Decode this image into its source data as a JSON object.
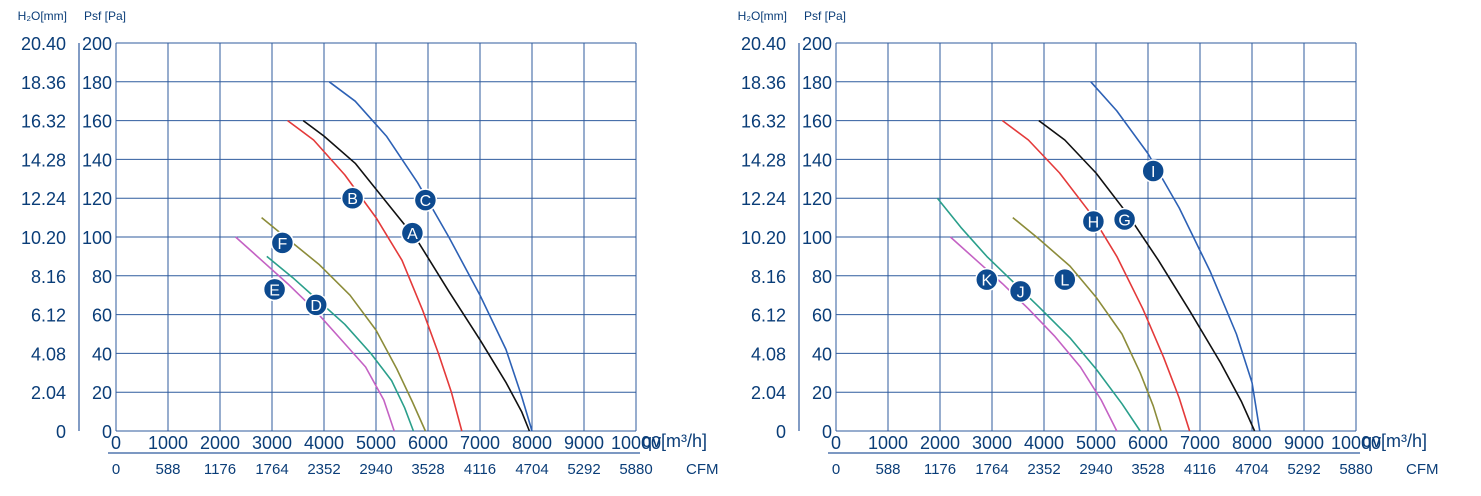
{
  "chart_data": [
    {
      "type": "line",
      "title": "",
      "y_units": {
        "mm": "H₂O[mm]",
        "pa": "Psf [Pa]"
      },
      "x_unit_top": "qv[m³/h]",
      "x_unit_bottom": "CFM",
      "grid": true,
      "xlim": [
        0,
        10000
      ],
      "ylim": [
        0,
        200
      ],
      "y_ticks_pa": [
        "0",
        "20",
        "40",
        "60",
        "80",
        "100",
        "120",
        "140",
        "160",
        "180",
        "200"
      ],
      "y_ticks_mm": [
        "0",
        "2.04",
        "4.08",
        "6.12",
        "8.16",
        "10.20",
        "12.24",
        "14.28",
        "16.32",
        "18.36",
        "20.40"
      ],
      "x_ticks_m3h": [
        "0",
        "1000",
        "2000",
        "3000",
        "4000",
        "5000",
        "6000",
        "7000",
        "8000",
        "9000",
        "10000"
      ],
      "x_ticks_cfm": [
        "0",
        "588",
        "1176",
        "1764",
        "2352",
        "2940",
        "3528",
        "4116",
        "4704",
        "5292",
        "5880"
      ],
      "series": [
        {
          "name": "A",
          "color": "#111111",
          "points": [
            [
              3600,
              160
            ],
            [
              4000,
              152
            ],
            [
              4600,
              138
            ],
            [
              5200,
              118
            ],
            [
              5800,
              98
            ],
            [
              6400,
              72
            ],
            [
              7000,
              47
            ],
            [
              7500,
              25
            ],
            [
              7800,
              10
            ],
            [
              7950,
              0
            ]
          ]
        },
        {
          "name": "B",
          "color": "#e43a3a",
          "points": [
            [
              3300,
              160
            ],
            [
              3800,
              150
            ],
            [
              4400,
              132
            ],
            [
              5000,
              110
            ],
            [
              5500,
              88
            ],
            [
              5900,
              62
            ],
            [
              6200,
              40
            ],
            [
              6450,
              20
            ],
            [
              6650,
              0
            ]
          ]
        },
        {
          "name": "C",
          "color": "#2d61b5",
          "points": [
            [
              4100,
              180
            ],
            [
              4600,
              170
            ],
            [
              5200,
              152
            ],
            [
              5800,
              128
            ],
            [
              6400,
              100
            ],
            [
              7000,
              70
            ],
            [
              7500,
              42
            ],
            [
              7800,
              18
            ],
            [
              8000,
              0
            ]
          ]
        },
        {
          "name": "D",
          "color": "#2a9f8b",
          "points": [
            [
              2900,
              90
            ],
            [
              3400,
              79
            ],
            [
              3900,
              67
            ],
            [
              4400,
              55
            ],
            [
              4900,
              40
            ],
            [
              5300,
              26
            ],
            [
              5550,
              12
            ],
            [
              5720,
              0
            ]
          ]
        },
        {
          "name": "E",
          "color": "#c462c4",
          "points": [
            [
              2300,
              100
            ],
            [
              2800,
              88
            ],
            [
              3300,
              76
            ],
            [
              3800,
              63
            ],
            [
              4300,
              48
            ],
            [
              4800,
              33
            ],
            [
              5150,
              16
            ],
            [
              5350,
              0
            ]
          ]
        },
        {
          "name": "F",
          "color": "#8c8c3a",
          "points": [
            [
              2800,
              110
            ],
            [
              3300,
              99
            ],
            [
              3900,
              86
            ],
            [
              4500,
              70
            ],
            [
              5000,
              52
            ],
            [
              5400,
              32
            ],
            [
              5700,
              15
            ],
            [
              5950,
              0
            ]
          ]
        }
      ],
      "markers": [
        {
          "label": "A",
          "x": 5700,
          "y": 102
        },
        {
          "label": "B",
          "x": 4550,
          "y": 120
        },
        {
          "label": "C",
          "x": 5950,
          "y": 119
        },
        {
          "label": "D",
          "x": 3850,
          "y": 65
        },
        {
          "label": "E",
          "x": 3050,
          "y": 73
        },
        {
          "label": "F",
          "x": 3200,
          "y": 97
        }
      ]
    },
    {
      "type": "line",
      "title": "",
      "y_units": {
        "mm": "H₂O[mm]",
        "pa": "Psf [Pa]"
      },
      "x_unit_top": "qv[m³/h]",
      "x_unit_bottom": "CFM",
      "grid": true,
      "xlim": [
        0,
        10000
      ],
      "ylim": [
        0,
        200
      ],
      "y_ticks_pa": [
        "0",
        "20",
        "40",
        "60",
        "80",
        "100",
        "120",
        "140",
        "160",
        "180",
        "200"
      ],
      "y_ticks_mm": [
        "0",
        "2.04",
        "4.08",
        "6.12",
        "8.16",
        "10.20",
        "12.24",
        "14.28",
        "16.32",
        "18.36",
        "20.40"
      ],
      "x_ticks_m3h": [
        "0",
        "1000",
        "2000",
        "3000",
        "4000",
        "5000",
        "6000",
        "7000",
        "8000",
        "9000",
        "10000"
      ],
      "x_ticks_cfm": [
        "0",
        "588",
        "1176",
        "1764",
        "2352",
        "2940",
        "3528",
        "4116",
        "4704",
        "5292",
        "5880"
      ],
      "series": [
        {
          "name": "G",
          "color": "#111111",
          "points": [
            [
              3900,
              160
            ],
            [
              4400,
              150
            ],
            [
              5000,
              133
            ],
            [
              5600,
              112
            ],
            [
              6200,
              88
            ],
            [
              6800,
              62
            ],
            [
              7400,
              35
            ],
            [
              7800,
              15
            ],
            [
              8050,
              0
            ]
          ]
        },
        {
          "name": "H",
          "color": "#e43a3a",
          "points": [
            [
              3200,
              160
            ],
            [
              3700,
              150
            ],
            [
              4300,
              133
            ],
            [
              4900,
              112
            ],
            [
              5400,
              90
            ],
            [
              5900,
              63
            ],
            [
              6300,
              38
            ],
            [
              6600,
              17
            ],
            [
              6800,
              0
            ]
          ]
        },
        {
          "name": "I",
          "color": "#2d61b5",
          "points": [
            [
              4900,
              180
            ],
            [
              5400,
              165
            ],
            [
              6000,
              143
            ],
            [
              6600,
              115
            ],
            [
              7200,
              82
            ],
            [
              7700,
              50
            ],
            [
              8000,
              25
            ],
            [
              8150,
              0
            ]
          ]
        },
        {
          "name": "J",
          "color": "#c462c4",
          "points": [
            [
              2200,
              100
            ],
            [
              2700,
              88
            ],
            [
              3200,
              76
            ],
            [
              3700,
              63
            ],
            [
              4200,
              49
            ],
            [
              4700,
              33
            ],
            [
              5100,
              16
            ],
            [
              5400,
              0
            ]
          ]
        },
        {
          "name": "K",
          "color": "#2a9f8b",
          "points": [
            [
              1950,
              120
            ],
            [
              2400,
              105
            ],
            [
              2900,
              90
            ],
            [
              3400,
              77
            ],
            [
              3900,
              64
            ],
            [
              4500,
              48
            ],
            [
              5000,
              32
            ],
            [
              5500,
              14
            ],
            [
              5850,
              0
            ]
          ]
        },
        {
          "name": "L",
          "color": "#8c8c3a",
          "points": [
            [
              3400,
              110
            ],
            [
              3900,
              99
            ],
            [
              4500,
              85
            ],
            [
              5000,
              69
            ],
            [
              5500,
              50
            ],
            [
              5850,
              30
            ],
            [
              6100,
              13
            ],
            [
              6250,
              0
            ]
          ]
        }
      ],
      "markers": [
        {
          "label": "G",
          "x": 5550,
          "y": 109
        },
        {
          "label": "H",
          "x": 4950,
          "y": 108
        },
        {
          "label": "I",
          "x": 6100,
          "y": 134
        },
        {
          "label": "J",
          "x": 3550,
          "y": 72
        },
        {
          "label": "K",
          "x": 2900,
          "y": 78
        },
        {
          "label": "L",
          "x": 4400,
          "y": 78
        }
      ]
    }
  ]
}
